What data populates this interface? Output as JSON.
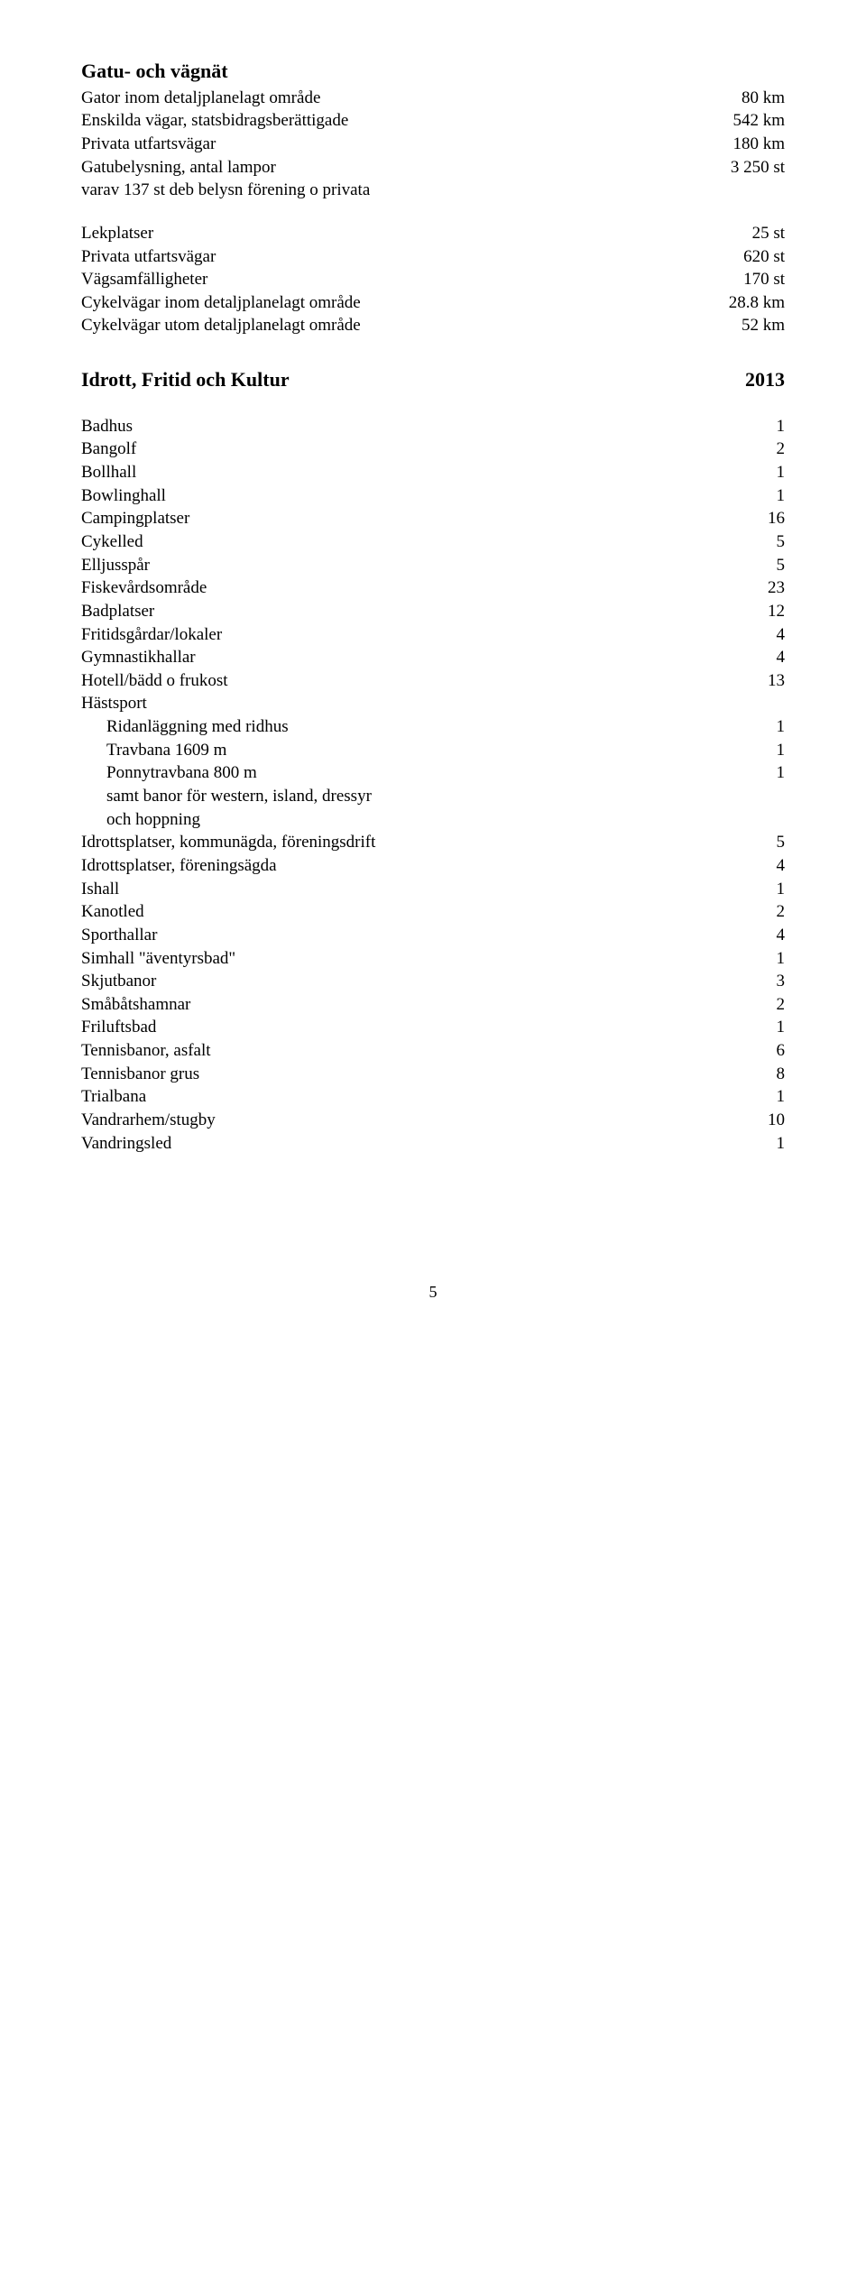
{
  "section1": {
    "heading": "Gatu- och vägnät",
    "rows": [
      {
        "label": "Gator inom detaljplanelagt område",
        "value": "80 km"
      },
      {
        "label": "Enskilda vägar, statsbidragsberättigade",
        "value": "542 km"
      },
      {
        "label": "Privata utfartsvägar",
        "value": "180 km"
      },
      {
        "label": "Gatubelysning, antal lampor",
        "value": "3 250 st"
      },
      {
        "label": "varav  137 st deb belysn förening o privata",
        "value": ""
      }
    ]
  },
  "section2": {
    "rows": [
      {
        "label": "Lekplatser",
        "value": "25 st"
      },
      {
        "label": "Privata utfartsvägar",
        "value": "620 st"
      },
      {
        "label": "Vägsamfälligheter",
        "value": "170 st"
      },
      {
        "label": "Cykelvägar inom detaljplanelagt område",
        "value": "28.8 km"
      },
      {
        "label": "Cykelvägar utom detaljplanelagt område",
        "value": "52 km"
      }
    ]
  },
  "section3": {
    "heading": "Idrott, Fritid och Kultur",
    "heading_value": "2013",
    "rows": [
      {
        "label": "Badhus",
        "value": "1"
      },
      {
        "label": "Bangolf",
        "value": "2"
      },
      {
        "label": "Bollhall",
        "value": "1"
      },
      {
        "label": "Bowlinghall",
        "value": "1"
      },
      {
        "label": "Campingplatser",
        "value": "16"
      },
      {
        "label": "Cykelled",
        "value": "5"
      },
      {
        "label": "Elljusspår",
        "value": "5"
      },
      {
        "label": "Fiskevårdsområde",
        "value": "23"
      },
      {
        "label": "Badplatser",
        "value": "12"
      },
      {
        "label": "Fritidsgårdar/lokaler",
        "value": "4"
      },
      {
        "label": "Gymnastikhallar",
        "value": "4"
      },
      {
        "label": "Hotell/bädd o frukost",
        "value": "13"
      },
      {
        "label": "Hästsport",
        "value": ""
      },
      {
        "label": "Ridanläggning med ridhus",
        "value": "1",
        "indent": true
      },
      {
        "label": "Travbana 1609 m",
        "value": "1",
        "indent": true
      },
      {
        "label": "Ponnytravbana 800 m",
        "value": "1",
        "indent": true
      },
      {
        "label": "samt banor för western, island, dressyr",
        "value": "",
        "indent": true
      },
      {
        "label": "och hoppning",
        "value": "",
        "indent": true
      },
      {
        "label": "Idrottsplatser, kommunägda, föreningsdrift",
        "value": "5"
      },
      {
        "label": "Idrottsplatser, föreningsägda",
        "value": "4"
      },
      {
        "label": "Ishall",
        "value": "1"
      },
      {
        "label": "Kanotled",
        "value": "2"
      },
      {
        "label": "Sporthallar",
        "value": "4"
      },
      {
        "label": "Simhall \"äventyrsbad\"",
        "value": "1"
      },
      {
        "label": "Skjutbanor",
        "value": "3"
      },
      {
        "label": "Småbåtshamnar",
        "value": "2"
      },
      {
        "label": "Friluftsbad",
        "value": "1"
      },
      {
        "label": "Tennisbanor, asfalt",
        "value": "6"
      },
      {
        "label": "Tennisbanor grus",
        "value": "8"
      },
      {
        "label": "Trialbana",
        "value": "1"
      },
      {
        "label": "Vandrarhem/stugby",
        "value": "10"
      },
      {
        "label": "Vandringsled",
        "value": "1"
      }
    ]
  },
  "page_number": "5"
}
